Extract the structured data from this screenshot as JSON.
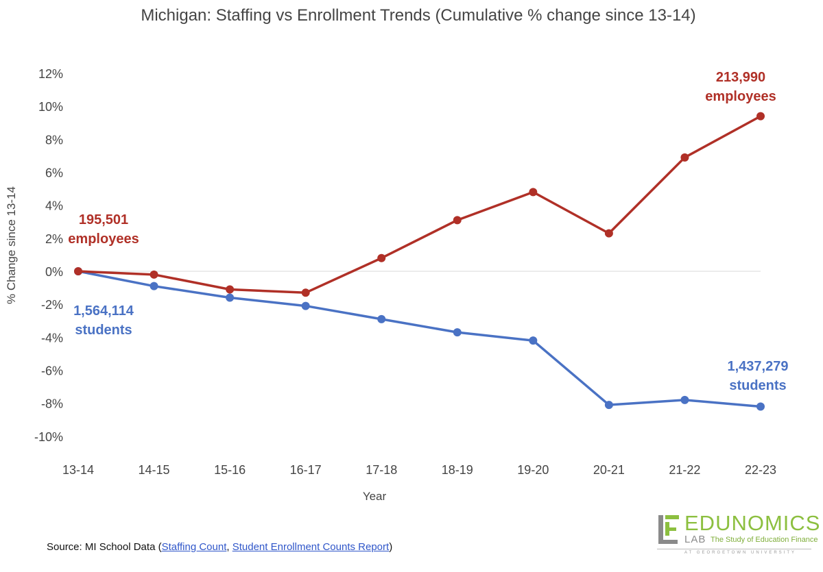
{
  "chart_data": {
    "type": "line",
    "title": "Michigan: Staffing vs Enrollment Trends (Cumulative % change since 13-14)",
    "xlabel": "Year",
    "ylabel": "% Change since 13-14",
    "categories": [
      "13-14",
      "14-15",
      "15-16",
      "16-17",
      "17-18",
      "18-19",
      "19-20",
      "20-21",
      "21-22",
      "22-23"
    ],
    "ylim": [
      -10,
      12
    ],
    "ytick_values": [
      -10,
      -8,
      -6,
      -4,
      -2,
      0,
      2,
      4,
      6,
      8,
      10,
      12
    ],
    "yticks": [
      "-10%",
      "-8%",
      "-6%",
      "-4%",
      "-2%",
      "0%",
      "2%",
      "4%",
      "6%",
      "8%",
      "10%",
      "12%"
    ],
    "grid": false,
    "series": [
      {
        "name": "employees",
        "color": "#b03027",
        "values": [
          0,
          -0.2,
          -1.1,
          -1.3,
          0.8,
          3.1,
          4.8,
          2.3,
          6.9,
          9.4
        ],
        "start_label": [
          "195,501",
          "employees"
        ],
        "end_label": [
          "213,990",
          "employees"
        ]
      },
      {
        "name": "students",
        "color": "#4a72c4",
        "values": [
          0,
          -0.9,
          -1.6,
          -2.1,
          -2.9,
          -3.7,
          -4.2,
          -8.1,
          -7.8,
          -8.2
        ],
        "start_label": [
          "1,564,114",
          "students"
        ],
        "end_label": [
          "1,437,279",
          "students"
        ]
      }
    ]
  },
  "source": {
    "prefix": "Source: MI School Data (",
    "link1": "Staffing Count",
    "sep": ", ",
    "link2": "Student Enrollment Counts Report",
    "suffix": ")"
  },
  "logo": {
    "word": "EDUNOMICS",
    "lab": "LAB",
    "tagline": "The Study of Education Finance",
    "sub": "AT GEORGETOWN UNIVERSITY"
  }
}
